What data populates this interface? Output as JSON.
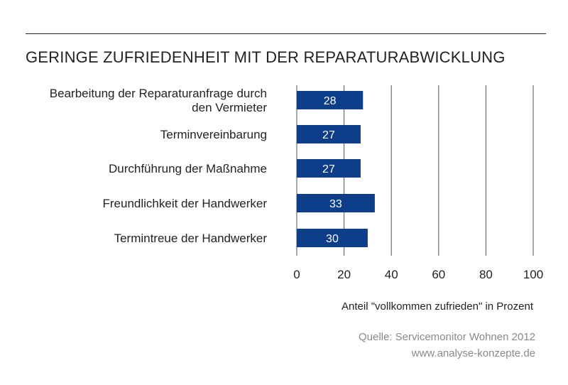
{
  "title": "GERINGE ZUFRIEDENHEIT MIT DER REPARATURABWICKLUNG",
  "xlabel": "Anteil \"vollkommen zufrieden\" in Prozent",
  "source_line1": "Quelle: Servicemonitor Wohnen 2012",
  "source_line2": "www.analyse-konzepte.de",
  "colors": {
    "bar": "#0d3e8a",
    "grid": "#555555"
  },
  "chart_data": {
    "type": "bar",
    "orientation": "horizontal",
    "title": "GERINGE ZUFRIEDENHEIT MIT DER REPARATURABWICKLUNG",
    "xlabel": "Anteil \"vollkommen zufrieden\" in Prozent",
    "categories": [
      [
        "Bearbeitung der Reparaturanfrage durch",
        "den Vermieter"
      ],
      [
        "Terminvereinbarung"
      ],
      [
        "Durchführung der Maßnahme"
      ],
      [
        "Freundlichkeit der Handwerker"
      ],
      [
        "Termintreue der Handwerker"
      ]
    ],
    "values": [
      28,
      27,
      27,
      33,
      30
    ],
    "xlim": [
      0,
      100
    ],
    "xticks": [
      0,
      20,
      40,
      60,
      80,
      100
    ],
    "grid": "vertical"
  }
}
